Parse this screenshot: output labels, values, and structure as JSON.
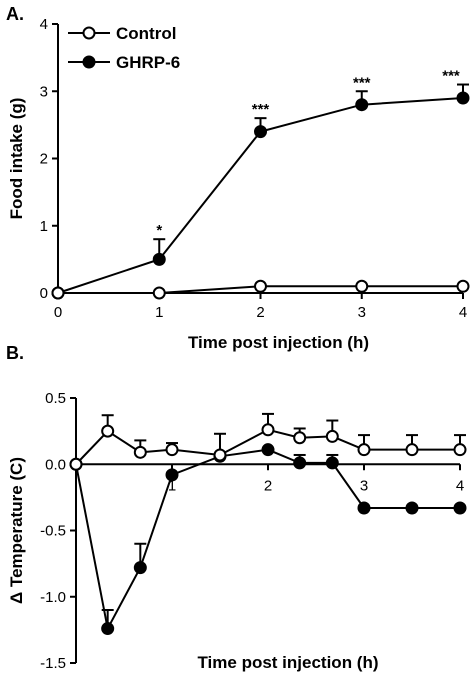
{
  "chart_data": [
    {
      "panel_label": "A.",
      "type": "line",
      "xlabel": "Time post injection (h)",
      "ylabel": "Food intake (g)",
      "xlim": [
        0,
        4
      ],
      "ylim": [
        0,
        4
      ],
      "x_ticks": [
        "0",
        "1",
        "2",
        "3",
        "4"
      ],
      "y_ticks": [
        "0",
        "1",
        "2",
        "3",
        "4"
      ],
      "legend": {
        "placement": "top-left",
        "entries": [
          "Control",
          "GHRP-6"
        ]
      },
      "series": [
        {
          "name": "Control",
          "marker": "open-circle",
          "x": [
            0,
            1,
            2,
            3,
            4
          ],
          "y": [
            0,
            0,
            0.1,
            0.1,
            0.1
          ],
          "err": [
            0,
            0,
            0,
            0,
            0
          ]
        },
        {
          "name": "GHRP-6",
          "marker": "filled-circle",
          "x": [
            0,
            1,
            2,
            3,
            4
          ],
          "y": [
            0,
            0.5,
            2.4,
            2.8,
            2.9
          ],
          "err": [
            0,
            0.3,
            0.2,
            0.2,
            0.2
          ]
        }
      ],
      "annotations": [
        {
          "x": 1,
          "text": "*"
        },
        {
          "x": 2,
          "text": "***"
        },
        {
          "x": 3,
          "text": "***"
        },
        {
          "x": 4,
          "text": "***"
        }
      ]
    },
    {
      "panel_label": "B.",
      "type": "line",
      "xlabel": "Time post injection (h)",
      "ylabel": "Δ Temperature (C)",
      "xlim": [
        0,
        4
      ],
      "ylim": [
        -1.5,
        0.5
      ],
      "x_ticks": [
        "1",
        "2",
        "3",
        "4"
      ],
      "y_ticks": [
        "0.5",
        "0.0",
        "-0.5",
        "-1.0",
        "-1.5"
      ],
      "series": [
        {
          "name": "Control",
          "marker": "open-circle",
          "x": [
            0,
            0.33,
            0.67,
            1,
            1.5,
            2,
            2.33,
            2.67,
            3,
            3.5,
            4
          ],
          "y": [
            0,
            0.25,
            0.09,
            0.11,
            0.07,
            0.26,
            0.2,
            0.21,
            0.11,
            0.11,
            0.11
          ],
          "err": [
            0,
            0.12,
            0.09,
            0.05,
            0.16,
            0.12,
            0.07,
            0.12,
            0.11,
            0.11,
            0.11
          ]
        },
        {
          "name": "GHRP-6",
          "marker": "filled-circle",
          "x": [
            0,
            0.33,
            0.67,
            1,
            1.5,
            2,
            2.33,
            2.67,
            3,
            3.5,
            4
          ],
          "y": [
            0,
            -1.24,
            -0.78,
            -0.08,
            0.06,
            0.11,
            0.01,
            0.01,
            -0.33,
            -0.33,
            -0.33
          ],
          "err": [
            0,
            0.14,
            0.18,
            0,
            0,
            0,
            0.06,
            0.06,
            0,
            0,
            0
          ]
        }
      ]
    }
  ]
}
